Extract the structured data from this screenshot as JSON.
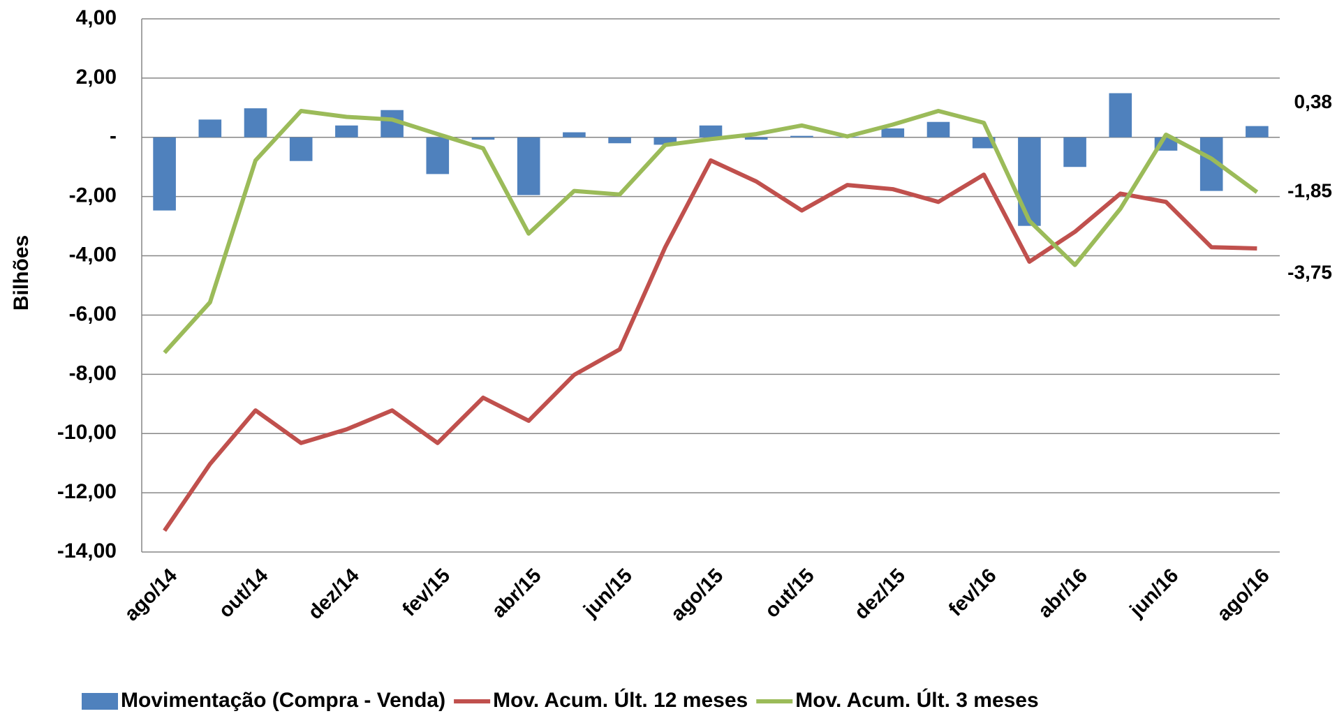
{
  "chart_data": {
    "type": "bar_line",
    "y_label": "Bilhões",
    "categories": [
      "ago/14",
      null,
      "out/14",
      null,
      "dez/14",
      null,
      "fev/15",
      null,
      "abr/15",
      null,
      "jun/15",
      null,
      "ago/15",
      null,
      "out/15",
      null,
      "dez/15",
      null,
      "fev/16",
      null,
      "abr/16",
      null,
      "jun/16",
      null,
      "ago/16"
    ],
    "series": [
      {
        "name": "Movimentação (Compra - Venda)",
        "type": "bar",
        "color": "#4f81bd",
        "values": [
          -2.47,
          0.6,
          0.98,
          -0.8,
          0.4,
          0.92,
          -1.24,
          -0.08,
          -1.95,
          0.17,
          -0.2,
          -0.25,
          0.4,
          -0.08,
          0.05,
          0.02,
          0.3,
          0.52,
          -0.37,
          -2.99,
          -1.0,
          1.49,
          -0.45,
          -1.81,
          0.38
        ],
        "value_labels": [
          null,
          null,
          null,
          null,
          null,
          null,
          null,
          null,
          null,
          null,
          null,
          null,
          null,
          null,
          null,
          null,
          null,
          null,
          null,
          null,
          null,
          null,
          null,
          null,
          "0,38"
        ]
      },
      {
        "name": "Mov. Acum. Últ. 12 meses",
        "type": "line",
        "color": "#c0504d",
        "label_color": "#c00000",
        "values": [
          -13.28,
          -11.03,
          -9.22,
          -10.32,
          -9.86,
          -9.22,
          -10.32,
          -8.79,
          -9.57,
          -8.02,
          -7.16,
          -3.71,
          -0.78,
          -1.49,
          -2.47,
          -1.61,
          -1.75,
          -2.18,
          -1.26,
          -4.2,
          -3.19,
          -1.9,
          -2.18,
          -3.71,
          -3.75
        ],
        "value_labels": [
          null,
          null,
          null,
          null,
          null,
          null,
          null,
          null,
          null,
          null,
          null,
          null,
          null,
          null,
          null,
          null,
          null,
          null,
          null,
          null,
          null,
          null,
          null,
          null,
          "-3,75"
        ]
      },
      {
        "name": "Mov. Acum. Últ. 3 meses",
        "type": "line",
        "color": "#9bbb59",
        "label_color": "#9bbb59",
        "values": [
          -7.27,
          -5.57,
          -0.78,
          0.89,
          0.69,
          0.6,
          0.11,
          -0.37,
          -3.25,
          -1.81,
          -1.93,
          -0.26,
          -0.06,
          0.11,
          0.4,
          0.03,
          0.43,
          0.89,
          0.49,
          -2.82,
          -4.31,
          -2.41,
          0.09,
          -0.72,
          -1.85
        ],
        "value_labels": [
          null,
          null,
          null,
          null,
          null,
          null,
          null,
          null,
          null,
          null,
          null,
          null,
          null,
          null,
          null,
          null,
          null,
          null,
          null,
          null,
          null,
          null,
          null,
          null,
          "-1,85"
        ]
      }
    ],
    "ylim": [
      -14,
      4
    ],
    "yticks": [
      {
        "value": -14,
        "label": "-14,00"
      },
      {
        "value": -12,
        "label": "-12,00"
      },
      {
        "value": -10,
        "label": "-10,00"
      },
      {
        "value": -8,
        "label": "-8,00"
      },
      {
        "value": -6,
        "label": "-6,00"
      },
      {
        "value": -4,
        "label": "-4,00"
      },
      {
        "value": -2,
        "label": "-2,00"
      },
      {
        "value": 0,
        "label": "-"
      },
      {
        "value": 2,
        "label": "2,00"
      },
      {
        "value": 4,
        "label": "4,00"
      }
    ],
    "grid": true,
    "legend": "bottom"
  }
}
